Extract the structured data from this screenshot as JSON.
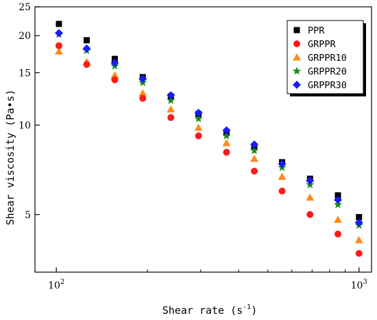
{
  "chart_data": {
    "type": "scatter",
    "xlabel": "Shear rate (s",
    "xlabel_sup": "-1",
    "xlabel_close": ")",
    "ylabel": "Shear viscosity (Pa•s)",
    "xscale": "log",
    "yscale": "log",
    "xlim": [
      85,
      1100
    ],
    "ylim": [
      3.2,
      25
    ],
    "x_ticks": [
      {
        "value": 100,
        "base": "10",
        "exp": "2"
      },
      {
        "value": 1000,
        "base": "10",
        "exp": "3"
      }
    ],
    "y_ticks": [
      5,
      10,
      15,
      20,
      25
    ],
    "grid": false,
    "legend_position": "top-right",
    "x": [
      102,
      126,
      156,
      193,
      239,
      295,
      365,
      451,
      557,
      689,
      852,
      1000
    ],
    "series": [
      {
        "name": "PPR",
        "marker": "square",
        "color": "#000000",
        "values": [
          21.9,
          19.3,
          16.7,
          14.5,
          12.5,
          10.9,
          9.4,
          8.5,
          7.5,
          6.6,
          5.8,
          4.9
        ]
      },
      {
        "name": "GRPPR",
        "marker": "circle",
        "color": "#ff1a1a",
        "values": [
          18.5,
          16.0,
          14.2,
          12.3,
          10.6,
          9.2,
          8.1,
          7.0,
          6.0,
          5.0,
          4.3,
          3.7
        ]
      },
      {
        "name": "GRPPR10",
        "marker": "triangle",
        "color": "#ff8c1a",
        "values": [
          17.7,
          16.3,
          14.7,
          12.8,
          11.3,
          9.8,
          8.7,
          7.7,
          6.7,
          5.7,
          4.8,
          4.1
        ]
      },
      {
        "name": "GRPPR20",
        "marker": "star",
        "color": "#1a8c1a",
        "values": [
          20.2,
          17.8,
          15.8,
          13.9,
          12.1,
          10.5,
          9.2,
          8.2,
          7.2,
          6.3,
          5.4,
          4.6
        ]
      },
      {
        "name": "GRPPR30",
        "marker": "diamond",
        "color": "#1a1aff",
        "values": [
          20.4,
          18.1,
          16.2,
          14.3,
          12.6,
          11.0,
          9.6,
          8.6,
          7.4,
          6.5,
          5.6,
          4.7
        ]
      }
    ]
  }
}
